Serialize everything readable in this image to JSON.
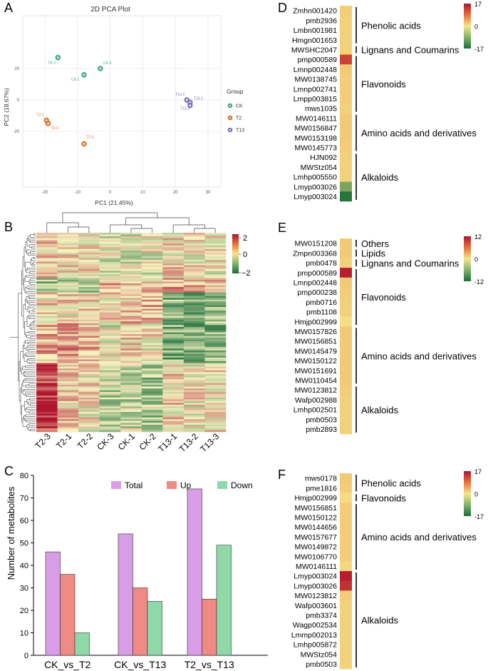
{
  "panel_labels": {
    "A": "A",
    "B": "B",
    "C": "C",
    "D": "D",
    "E": "E",
    "F": "F"
  },
  "colors": {
    "CK": "#3aa682",
    "T2": "#e06c2c",
    "T13": "#7e70b8",
    "total": "#d99ce6",
    "up": "#ef8a84",
    "down": "#8fd9a8",
    "heat_low": "#1b6e3a",
    "heat_mid": "#f7f3c0",
    "heat_high": "#b0152e"
  },
  "pca": {
    "title": "2D PCA Plot",
    "xlabel": "PC1 (21.45%)",
    "ylabel": "PC2 (18.67%)",
    "x_ticks": [
      "-20",
      "-10",
      "0",
      "10",
      "20",
      "30"
    ],
    "y_ticks": [
      "20",
      "0",
      "-20"
    ],
    "legend_title": "Group",
    "legend": [
      "CK",
      "T2",
      "T13"
    ],
    "points": [
      {
        "label": "CK-2",
        "group": "CK",
        "x": -16,
        "y": 27
      },
      {
        "label": "CK-3",
        "group": "CK",
        "x": -3,
        "y": 20
      },
      {
        "label": "CK-1",
        "group": "CK",
        "x": -8,
        "y": 16
      },
      {
        "label": "T2-1",
        "group": "T2",
        "x": -19.5,
        "y": -13
      },
      {
        "label": "T2-2",
        "group": "T2",
        "x": -19,
        "y": -15
      },
      {
        "label": "T2-3",
        "group": "T2",
        "x": -8,
        "y": -28
      },
      {
        "label": "T13-2",
        "group": "T13",
        "x": 23.5,
        "y": 0
      },
      {
        "label": "T13-1",
        "group": "T13",
        "x": 24.5,
        "y": -1.5
      },
      {
        "label": "T13-3",
        "group": "T13",
        "x": 24.5,
        "y": -3.5
      }
    ]
  },
  "heatmap": {
    "columns": [
      "T2-3",
      "T2-1",
      "T2-2",
      "CK-3",
      "CK-1",
      "CK-2",
      "T13-1",
      "T13-2",
      "T13-3"
    ],
    "scale_ticks": [
      "2",
      "0",
      "-2"
    ]
  },
  "chart_data": {
    "type": "bar",
    "categories": [
      "CK_vs_T2",
      "CK_vs_T13",
      "T2_vs_T13"
    ],
    "series": [
      {
        "name": "Total",
        "values": [
          46,
          54,
          74
        ]
      },
      {
        "name": "Up",
        "values": [
          36,
          30,
          25
        ]
      },
      {
        "name": "Down",
        "values": [
          10,
          24,
          49
        ]
      }
    ],
    "ylabel": "Number of metabolites",
    "xlabel": "",
    "ylim": [
      0,
      80
    ],
    "y_ticks": [
      "0",
      "10",
      "20",
      "30",
      "40",
      "50",
      "60",
      "70",
      "80"
    ],
    "legend": [
      "Total",
      "Up",
      "Down"
    ]
  },
  "fc_panels": [
    {
      "scale": [
        "17",
        "0",
        "-17"
      ],
      "rows": [
        {
          "name": "Zmhn001420",
          "v": 0.35
        },
        {
          "name": "pmb2936",
          "v": 0.3
        },
        {
          "name": "Lmbn001981",
          "v": 0.3
        },
        {
          "name": "Hmgn001653",
          "v": 0.3
        },
        {
          "name": "MWSHC2047",
          "v": 0.3
        },
        {
          "name": "pmp000589",
          "v": 0.75
        },
        {
          "name": "Lmnp002448",
          "v": 0.4
        },
        {
          "name": "MW0138745",
          "v": 0.35
        },
        {
          "name": "Lmnp002741",
          "v": 0.35
        },
        {
          "name": "Lmpp003815",
          "v": 0.35
        },
        {
          "name": "mws1035",
          "v": 0.3
        },
        {
          "name": "MW0146111",
          "v": 0.4
        },
        {
          "name": "MW0156847",
          "v": 0.4
        },
        {
          "name": "MW0153198",
          "v": 0.4
        },
        {
          "name": "MW0145773",
          "v": 0.35
        },
        {
          "name": "HJN092",
          "v": 0.3
        },
        {
          "name": "MWStz054",
          "v": 0.3
        },
        {
          "name": "Lmhp005550",
          "v": 0.3
        },
        {
          "name": "Lmyp003026",
          "v": -0.55
        },
        {
          "name": "Lmyp003024",
          "v": -0.95
        }
      ],
      "groups": [
        {
          "label": "Phenolic acids",
          "start": 0,
          "end": 3
        },
        {
          "label": "Lignans and Coumarins",
          "start": 4,
          "end": 4
        },
        {
          "label": "Flavonoids",
          "start": 5,
          "end": 10
        },
        {
          "label": "Amino acids and derivatives",
          "start": 11,
          "end": 14
        },
        {
          "label": "Alkaloids",
          "start": 15,
          "end": 19
        }
      ]
    },
    {
      "scale": [
        "12",
        "0",
        "-12"
      ],
      "rows": [
        {
          "name": "MW0151208",
          "v": 0.4
        },
        {
          "name": "Zmpn003368",
          "v": 0.4
        },
        {
          "name": "pmb0478",
          "v": 0.3
        },
        {
          "name": "pmp000589",
          "v": 0.95
        },
        {
          "name": "Lmnp002448",
          "v": 0.4
        },
        {
          "name": "pmp000238",
          "v": 0.35
        },
        {
          "name": "pmb0716",
          "v": 0.3
        },
        {
          "name": "pmb1108",
          "v": 0.3
        },
        {
          "name": "Hmjp002999",
          "v": 0.1
        },
        {
          "name": "MW0157826",
          "v": 0.4
        },
        {
          "name": "MW0156851",
          "v": 0.4
        },
        {
          "name": "MW0145479",
          "v": 0.4
        },
        {
          "name": "MW0150122",
          "v": 0.4
        },
        {
          "name": "MW0151691",
          "v": 0.4
        },
        {
          "name": "MW0110454",
          "v": 0.4
        },
        {
          "name": "MW0123812",
          "v": 0.35
        },
        {
          "name": "Wafp002988",
          "v": 0.3
        },
        {
          "name": "Lmhp002501",
          "v": 0.3
        },
        {
          "name": "pmb0503",
          "v": 0.3
        },
        {
          "name": "pmb2893",
          "v": 0.3
        }
      ],
      "groups": [
        {
          "label": "Others",
          "start": 0,
          "end": 0
        },
        {
          "label": "Lipids",
          "start": 1,
          "end": 1
        },
        {
          "label": "Lignans and Coumarins",
          "start": 2,
          "end": 2
        },
        {
          "label": "Flavonoids",
          "start": 3,
          "end": 8
        },
        {
          "label": "Amino acids and derivatives",
          "start": 9,
          "end": 14
        },
        {
          "label": "Alkaloids",
          "start": 15,
          "end": 19
        }
      ]
    },
    {
      "scale": [
        "17",
        "0",
        "-17"
      ],
      "rows": [
        {
          "name": "mws0178",
          "v": 0.4
        },
        {
          "name": "pme1816",
          "v": 0.35
        },
        {
          "name": "Hmjp002999",
          "v": 0.15
        },
        {
          "name": "MW0156851",
          "v": 0.35
        },
        {
          "name": "MW0150122",
          "v": 0.35
        },
        {
          "name": "MW0144656",
          "v": 0.35
        },
        {
          "name": "MW0157677",
          "v": 0.35
        },
        {
          "name": "MW0149872",
          "v": 0.35
        },
        {
          "name": "MW0106770",
          "v": 0.35
        },
        {
          "name": "MW0146111",
          "v": 0.2
        },
        {
          "name": "Lmyp003024",
          "v": 0.95
        },
        {
          "name": "Lmyp003026",
          "v": 0.85
        },
        {
          "name": "MW0123812",
          "v": 0.35
        },
        {
          "name": "Wafp003601",
          "v": 0.3
        },
        {
          "name": "pmb3374",
          "v": 0.3
        },
        {
          "name": "Wagp002534",
          "v": 0.3
        },
        {
          "name": "Lmmp002013",
          "v": 0.3
        },
        {
          "name": "Lmhp005872",
          "v": 0.3
        },
        {
          "name": "MWStz054",
          "v": 0.3
        },
        {
          "name": "pmb0503",
          "v": 0.3
        }
      ],
      "groups": [
        {
          "label": "Phenolic acids",
          "start": 0,
          "end": 1
        },
        {
          "label": "Flavonoids",
          "start": 2,
          "end": 2
        },
        {
          "label": "Amino acids and derivatives",
          "start": 3,
          "end": 9
        },
        {
          "label": "Alkaloids",
          "start": 10,
          "end": 19
        }
      ]
    }
  ]
}
